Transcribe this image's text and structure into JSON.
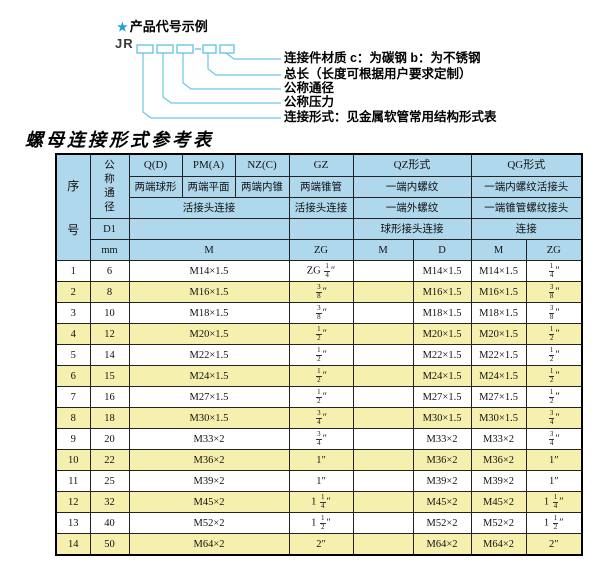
{
  "diagram": {
    "star_icon": "★",
    "title": "产品代号示例",
    "code_prefix": "JR",
    "labels": [
      "连接件材质  c：为碳钢  b：为不锈钢",
      "总长（长度可根据用户要求定制）",
      "公称通径",
      "公称压力",
      "连接形式：见金属软管常用结构形式表"
    ],
    "line_color": "#6cc5e6",
    "star_color": "#1e9ed6"
  },
  "table": {
    "title": "螺母连接形式参考表",
    "header_bg": "#afd8ec",
    "alt_row_bg": "#f6f0ae",
    "columns": {
      "seq": "序号",
      "nominal": "公称通径",
      "d1": "D1",
      "mm": "mm",
      "unit_m": "M",
      "q": {
        "code": "Q(D)",
        "desc": "两端球形"
      },
      "pm": {
        "code": "PM(A)",
        "desc": "两端平面"
      },
      "nz": {
        "code": "NZ(C)",
        "desc": "两端内锥"
      },
      "qpmnz_conn": "活接头连接",
      "gz": {
        "code": "GZ",
        "desc": "两端锥管",
        "conn": "活接头连接",
        "unit": "ZG"
      },
      "qz": {
        "code": "QZ形式",
        "desc1": "一端内螺纹",
        "desc2": "一端外螺纹",
        "conn": "球形接头连接",
        "unit1": "M",
        "unit2": "D"
      },
      "qg": {
        "code": "QG形式",
        "desc1": "一端内螺纹活接头",
        "desc2": "一端锥管螺纹接头",
        "conn": "连接",
        "unit1": "M",
        "unit2": "ZG"
      }
    },
    "rows": [
      [
        "1",
        "6",
        "M14×1.5",
        "ZG 1/4″",
        "",
        "M14×1.5",
        "M14×1.5",
        "1/4″"
      ],
      [
        "2",
        "8",
        "M16×1.5",
        "3/8″",
        "",
        "M16×1.5",
        "M16×1.5",
        "3/8″"
      ],
      [
        "3",
        "10",
        "M18×1.5",
        "3/8″",
        "",
        "M18×1.5",
        "M18×1.5",
        "3/8″"
      ],
      [
        "4",
        "12",
        "M20×1.5",
        "1/2″",
        "",
        "M20×1.5",
        "M20×1.5",
        "1/2″"
      ],
      [
        "5",
        "14",
        "M22×1.5",
        "1/2″",
        "",
        "M22×1.5",
        "M22×1.5",
        "1/2″"
      ],
      [
        "6",
        "15",
        "M24×1.5",
        "1/2″",
        "",
        "M24×1.5",
        "M24×1.5",
        "1/2″"
      ],
      [
        "7",
        "16",
        "M27×1.5",
        "1/2″",
        "",
        "M27×1.5",
        "M27×1.5",
        "1/2″"
      ],
      [
        "8",
        "18",
        "M30×1.5",
        "3/4″",
        "",
        "M30×1.5",
        "M30×1.5",
        "3/4″"
      ],
      [
        "9",
        "20",
        "M33×2",
        "3/4″",
        "",
        "M33×2",
        "M33×2",
        "3/4″"
      ],
      [
        "10",
        "22",
        "M36×2",
        "1″",
        "",
        "M36×2",
        "M36×2",
        "1″"
      ],
      [
        "11",
        "25",
        "M39×2",
        "1″",
        "",
        "M39×2",
        "M39×2",
        "1″"
      ],
      [
        "12",
        "32",
        "M45×2",
        "1 1/4″",
        "",
        "M45×2",
        "M45×2",
        "1 1/4″"
      ],
      [
        "13",
        "40",
        "M52×2",
        "1 1/2″",
        "",
        "M52×2",
        "M52×2",
        "1 1/2″"
      ],
      [
        "14",
        "50",
        "M64×2",
        "2″",
        "",
        "M64×2",
        "M64×2",
        "2″"
      ]
    ]
  }
}
